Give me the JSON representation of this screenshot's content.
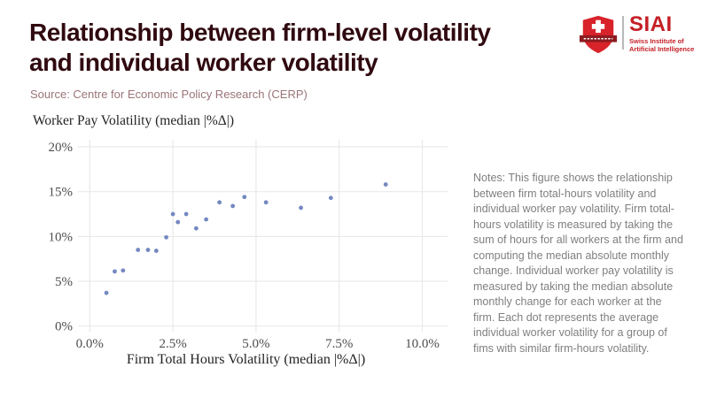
{
  "header": {
    "title_line1": "Relationship between firm-level volatility",
    "title_line2": "and individual worker volatility",
    "source": "Source: Centre for Economic Policy Research (CERP)",
    "title_color": "#300a10",
    "source_color": "#9a7478"
  },
  "logo": {
    "acronym": "SIAI",
    "name_line1": "Swiss Institute of",
    "name_line2": "Artificial Intelligence",
    "brand_red": "#c51f26",
    "shield_red": "#d8232a",
    "banner_dark_red": "#8c1c20"
  },
  "notes": {
    "text": "Notes: This figure shows the relationship between firm total-hours volatility and individual worker pay volatility. Firm total-hours volatility is measured by taking the sum of hours for all workers at the firm and computing the median absolute monthly change. Individual worker pay volatility is measured by taking the median absolute monthly change for each worker at the firm. Each dot represents the average individual worker volatility for a group of fims with similar firm-hours volatility."
  },
  "chart_data": {
    "type": "scatter",
    "title": "Worker Pay Volatility (median |%Δ|)",
    "xlabel": "Firm Total Hours Volatility (median |%Δ|)",
    "x_ticks": [
      "0.0%",
      "2.5%",
      "5.0%",
      "7.5%",
      "10.0%"
    ],
    "x_tick_values": [
      0,
      2.5,
      5,
      7.5,
      10
    ],
    "y_ticks": [
      "0%",
      "5%",
      "10%",
      "15%",
      "20%"
    ],
    "y_tick_values": [
      0,
      5,
      10,
      15,
      20
    ],
    "xlim": [
      -0.35,
      10.75
    ],
    "ylim": [
      -0.65,
      20.85
    ],
    "grid": true,
    "grid_color": "#e9e9e9",
    "point_color": "#7488c1",
    "points": [
      [
        0.5,
        3.7
      ],
      [
        0.75,
        6.1
      ],
      [
        1.0,
        6.2
      ],
      [
        1.45,
        8.5
      ],
      [
        1.75,
        8.5
      ],
      [
        2.0,
        8.4
      ],
      [
        2.3,
        9.9
      ],
      [
        2.5,
        12.5
      ],
      [
        2.65,
        11.6
      ],
      [
        2.9,
        12.5
      ],
      [
        3.2,
        10.9
      ],
      [
        3.5,
        11.9
      ],
      [
        3.9,
        13.8
      ],
      [
        4.3,
        13.4
      ],
      [
        4.65,
        14.4
      ],
      [
        5.3,
        13.8
      ],
      [
        6.35,
        13.2
      ],
      [
        7.25,
        14.3
      ],
      [
        8.9,
        15.8
      ]
    ]
  }
}
